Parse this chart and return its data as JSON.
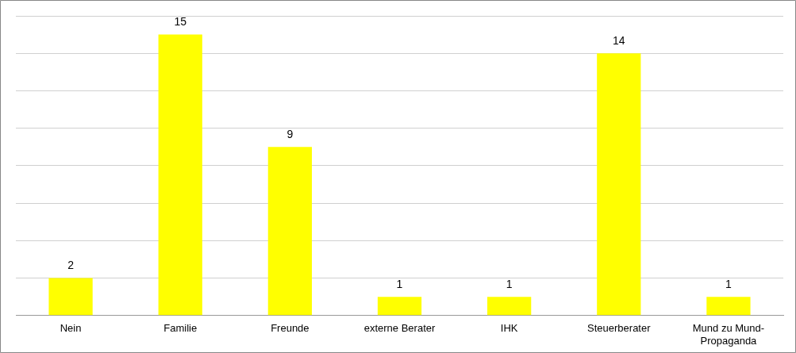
{
  "chart_data": {
    "type": "bar",
    "categories": [
      "Nein",
      "Familie",
      "Freunde",
      "externe Berater",
      "IHK",
      "Steuerberater",
      "Mund zu Mund-Propaganda"
    ],
    "values": [
      2,
      15,
      9,
      1,
      1,
      14,
      1
    ],
    "color": "#ffff00",
    "data_labels": true,
    "grid": "y",
    "ylim": [
      0,
      16
    ],
    "yticks": [
      {
        "value": 0,
        "label": null
      },
      {
        "value": 2,
        "label": null
      },
      {
        "value": 4,
        "label": null
      },
      {
        "value": 6,
        "label": null
      },
      {
        "value": 8,
        "label": null
      },
      {
        "value": 10,
        "label": null
      },
      {
        "value": 12,
        "label": null
      },
      {
        "value": 14,
        "label": null
      },
      {
        "value": 16,
        "label": null
      }
    ]
  }
}
